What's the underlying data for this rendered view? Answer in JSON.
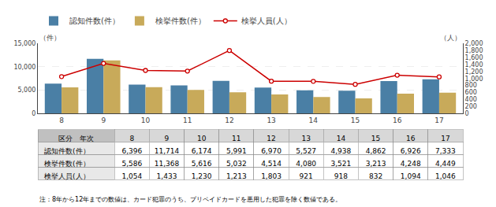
{
  "chart_data": {
    "type": "bar",
    "categories": [
      "8",
      "9",
      "10",
      "11",
      "12",
      "13",
      "14",
      "15",
      "16",
      "17"
    ],
    "series": [
      {
        "name": "認知件数(件）",
        "color": "#4a7fa5",
        "values": [
          6396,
          11714,
          6174,
          5991,
          6970,
          5527,
          4938,
          4862,
          6926,
          7333
        ]
      },
      {
        "name": "検挙件数(件）",
        "color": "#c8aa5a",
        "values": [
          5586,
          11368,
          5616,
          5032,
          4514,
          4080,
          3521,
          3213,
          4248,
          4449
        ]
      },
      {
        "name": "検挙人員(人）",
        "type": "line",
        "axis": "y2",
        "color": "#cc0000",
        "marker": "circle",
        "values": [
          1054,
          1433,
          1230,
          1213,
          1803,
          921,
          918,
          832,
          1094,
          1046
        ]
      }
    ],
    "ylim": [
      0,
      15000
    ],
    "yticks": [
      0,
      {
        "value": 5000,
        "label": "5,000"
      },
      {
        "value": 10000,
        "label": "10,000"
      },
      {
        "value": 15000,
        "label": "15,000"
      }
    ],
    "y2lim": [
      0,
      2000
    ],
    "y2ticks": [
      0,
      200,
      400,
      600,
      800,
      {
        "value": 1000,
        "label": "1,000"
      },
      {
        "value": 1200,
        "label": "1,200"
      },
      {
        "value": 1400,
        "label": "1,400"
      },
      {
        "value": 1600,
        "label": "1,600"
      },
      {
        "value": 1800,
        "label": "1,800"
      },
      {
        "value": 2000,
        "label": "2,000"
      }
    ],
    "ylabel": "（件）",
    "y2label": "（人）",
    "grid": true,
    "legend": "top",
    "table": {
      "header": "区分　年次",
      "rows": [
        [
          "6,396",
          "11,714",
          "6,174",
          "5,991",
          "6,970",
          "5,527",
          "4,938",
          "4,862",
          "6,926",
          "7,333"
        ],
        [
          "5,586",
          "11,368",
          "5,616",
          "5,032",
          "4,514",
          "4,080",
          "3,521",
          "3,213",
          "4,248",
          "4,449"
        ],
        [
          "1,054",
          "1,433",
          "1,230",
          "1,213",
          "1,803",
          "921",
          "918",
          "832",
          "1,094",
          "1,046"
        ]
      ]
    },
    "note": "注：8年から12年までの数値は、カード犯罪のうち、プリペイドカードを悪用した犯罪を除く数値である。"
  }
}
